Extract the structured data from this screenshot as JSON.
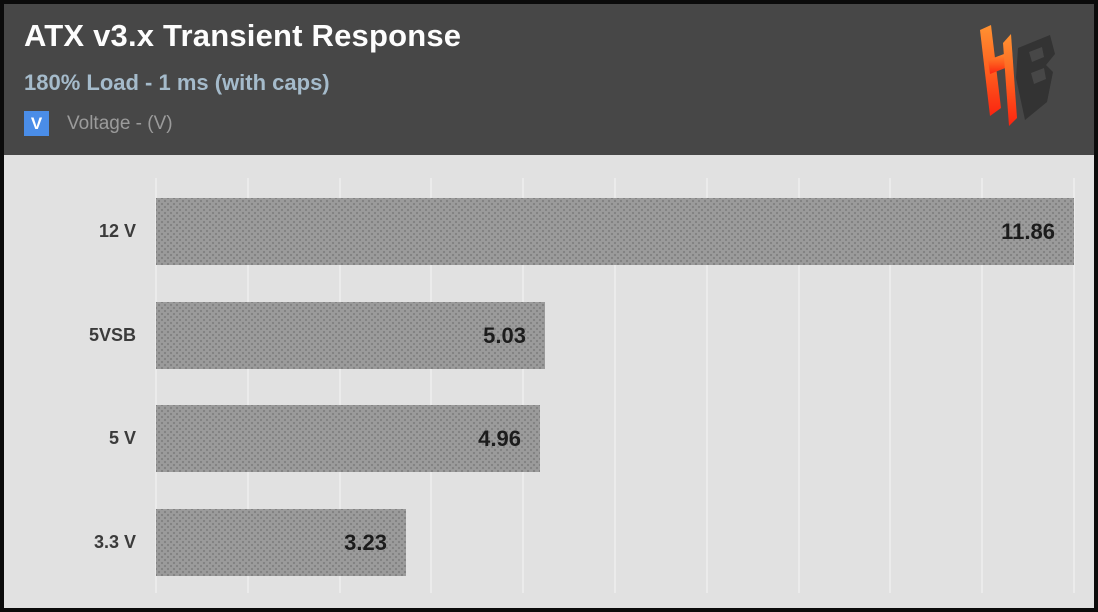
{
  "header": {
    "title": "ATX v3.x Transient Response",
    "subtitle": "180% Load - 1 ms (with caps)",
    "legend": {
      "swatch_label": "V",
      "swatch_color": "#4a8de8",
      "label": "Voltage - (V)"
    },
    "logo_name": "hardware-busters-logo"
  },
  "chart_data": {
    "type": "bar",
    "orientation": "horizontal",
    "title": "ATX v3.x Transient Response",
    "subtitle": "180% Load - 1 ms (with caps)",
    "series_name": "Voltage - (V)",
    "categories": [
      "12 V",
      "5VSB",
      "5 V",
      "3.3 V"
    ],
    "values": [
      11.86,
      5.03,
      4.96,
      3.23
    ],
    "value_labels": [
      "11.86",
      "5.03",
      "4.96",
      "3.23"
    ],
    "xlabel": "",
    "ylabel": "",
    "xlim": [
      0,
      11.86
    ],
    "grid": true,
    "grid_divisions": 10,
    "legend_position": "top-left",
    "bar_color": "#9b9b9b",
    "plot_background": "#e1e1e1",
    "header_background": "#474747",
    "value_label_color": "#1c1c1c"
  }
}
